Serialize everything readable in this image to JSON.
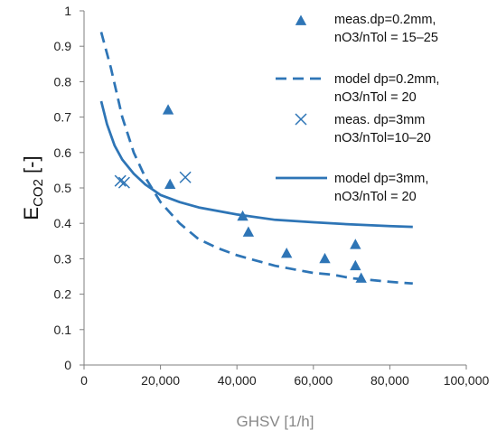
{
  "chart_data": {
    "type": "scatter",
    "xlabel": "GHSV [1/h]",
    "ylabel_main": "E",
    "ylabel_sub": "CO2",
    "ylabel_tail": " [-]",
    "xlim": [
      0,
      100000
    ],
    "ylim": [
      0,
      1
    ],
    "x_ticks": [
      0,
      20000,
      40000,
      60000,
      80000,
      100000
    ],
    "x_tick_labels": [
      "0",
      "20,000",
      "40,000",
      "60,000",
      "80,000",
      "100,000"
    ],
    "y_ticks": [
      0,
      0.1,
      0.2,
      0.3,
      0.4,
      0.5,
      0.6,
      0.7,
      0.8,
      0.9,
      1
    ],
    "y_tick_labels": [
      "0",
      "0.1",
      "0.2",
      "0.3",
      "0.4",
      "0.5",
      "0.6",
      "0.7",
      "0.8",
      "0.9",
      "1"
    ],
    "grid": false,
    "legend_position": "top-right",
    "color": "#2E75B6",
    "series": [
      {
        "name_line1": "meas.dp=0.2mm,",
        "name_line2": "nO3/nTol = 15–25",
        "style": "triangle-marker",
        "points": [
          [
            22000,
            0.72
          ],
          [
            22500,
            0.51
          ],
          [
            41500,
            0.42
          ],
          [
            43000,
            0.375
          ],
          [
            53000,
            0.315
          ],
          [
            63000,
            0.3
          ],
          [
            71000,
            0.34
          ],
          [
            71000,
            0.28
          ],
          [
            72500,
            0.245
          ]
        ]
      },
      {
        "name_line1": "model dp=0.2mm,",
        "name_line2": "nO3/nTol = 20",
        "style": "dashed-line",
        "points": [
          [
            4500,
            0.94
          ],
          [
            7000,
            0.84
          ],
          [
            10000,
            0.7
          ],
          [
            13000,
            0.6
          ],
          [
            16000,
            0.53
          ],
          [
            20000,
            0.46
          ],
          [
            25000,
            0.4
          ],
          [
            30000,
            0.355
          ],
          [
            35000,
            0.33
          ],
          [
            40000,
            0.31
          ],
          [
            45000,
            0.295
          ],
          [
            50000,
            0.28
          ],
          [
            55000,
            0.27
          ],
          [
            60000,
            0.26
          ],
          [
            65000,
            0.255
          ],
          [
            70000,
            0.245
          ],
          [
            75000,
            0.24
          ],
          [
            80000,
            0.235
          ],
          [
            86000,
            0.23
          ]
        ]
      },
      {
        "name_line1": "meas. dp=3mm",
        "name_line2": "nO3/nTol=10–20",
        "style": "x-marker",
        "points": [
          [
            9500,
            0.52
          ],
          [
            10500,
            0.515
          ],
          [
            26500,
            0.53
          ]
        ]
      },
      {
        "name_line1": "model dp=3mm,",
        "name_line2": "nO3/nTol = 20",
        "style": "solid-line",
        "points": [
          [
            4500,
            0.745
          ],
          [
            6000,
            0.68
          ],
          [
            8000,
            0.62
          ],
          [
            10000,
            0.58
          ],
          [
            13000,
            0.54
          ],
          [
            16000,
            0.51
          ],
          [
            20000,
            0.48
          ],
          [
            25000,
            0.46
          ],
          [
            30000,
            0.445
          ],
          [
            35000,
            0.435
          ],
          [
            40000,
            0.425
          ],
          [
            50000,
            0.41
          ],
          [
            60000,
            0.403
          ],
          [
            70000,
            0.397
          ],
          [
            80000,
            0.392
          ],
          [
            86000,
            0.39
          ]
        ]
      }
    ]
  }
}
